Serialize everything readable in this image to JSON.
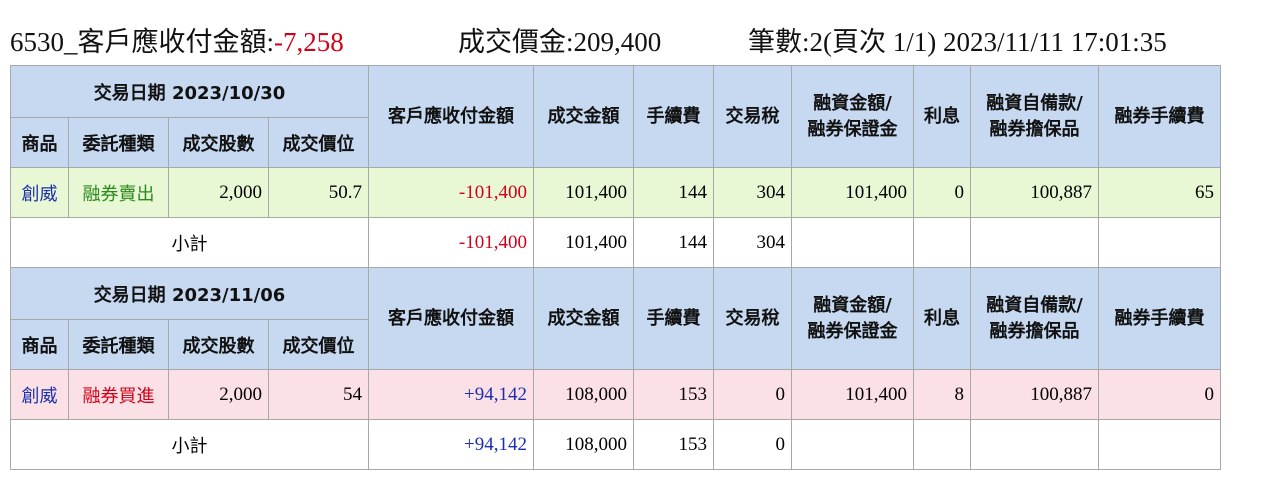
{
  "header": {
    "stock_label": "6530_客戶應收付金額:",
    "net_amount": "-7,258",
    "turnover_label": "成交價金:",
    "turnover": "209,400",
    "count_info": "筆數:2(頁次 1/1) 2023/11/11 17:01:35"
  },
  "tables": [
    {
      "date_label": "交易日期 2023/10/30",
      "columns_top": [
        [
          "客戶應收付金額"
        ],
        [
          "成交金額"
        ],
        [
          "手續費"
        ],
        [
          "交易稅"
        ],
        [
          "融資金額/",
          "融券保證金"
        ],
        [
          "利息"
        ],
        [
          "融資自備款/",
          "融券擔保品"
        ],
        [
          "融券手續費"
        ]
      ],
      "columns_bottom": [
        "商品",
        "委託種類",
        "成交股數",
        "成交價位"
      ],
      "row": [
        "創威",
        "融券賣出",
        "2,000",
        "50.7",
        "-101,400",
        "101,400",
        "144",
        "304",
        "101,400",
        "0",
        "100,887",
        "65"
      ],
      "subtotal": {
        "label": "小計",
        "values": [
          "-101,400",
          "101,400",
          "144",
          "304"
        ]
      }
    },
    {
      "date_label": "交易日期 2023/11/06",
      "columns_top": [
        [
          "客戶應收付金額"
        ],
        [
          "成交金額"
        ],
        [
          "手續費"
        ],
        [
          "交易稅"
        ],
        [
          "融資金額/",
          "融券保證金"
        ],
        [
          "利息"
        ],
        [
          "融資自備款/",
          "融券擔保品"
        ],
        [
          "融券手續費"
        ]
      ],
      "columns_bottom": [
        "商品",
        "委託種類",
        "成交股數",
        "成交價位"
      ],
      "row": [
        "創威",
        "融券買進",
        "2,000",
        "54",
        "+94,142",
        "108,000",
        "153",
        "0",
        "101,400",
        "8",
        "100,887",
        "0"
      ],
      "subtotal": {
        "label": "小計",
        "values": [
          "+94,142",
          "108,000",
          "153",
          "0"
        ]
      }
    }
  ]
}
